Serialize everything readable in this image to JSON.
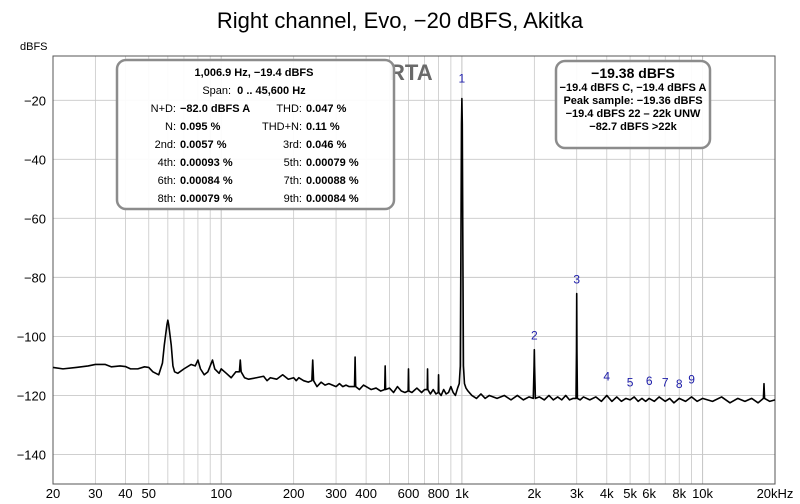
{
  "chart_data": {
    "type": "line",
    "title": "Right channel, Evo, −20 dBFS, Akitka",
    "ylabel": "dBFS",
    "x_scale": "log",
    "xlim": [
      20,
      20000
    ],
    "ylim": [
      -150,
      -5
    ],
    "grid": true,
    "x_ticks": [
      {
        "v": 20,
        "label": "20"
      },
      {
        "v": 30,
        "label": "30"
      },
      {
        "v": 40,
        "label": "40"
      },
      {
        "v": 50,
        "label": "50"
      },
      {
        "v": 100,
        "label": "100"
      },
      {
        "v": 200,
        "label": "200"
      },
      {
        "v": 300,
        "label": "300"
      },
      {
        "v": 400,
        "label": "400"
      },
      {
        "v": 600,
        "label": "600"
      },
      {
        "v": 800,
        "label": "800"
      },
      {
        "v": 1000,
        "label": "1k"
      },
      {
        "v": 2000,
        "label": "2k"
      },
      {
        "v": 3000,
        "label": "3k"
      },
      {
        "v": 4000,
        "label": "4k"
      },
      {
        "v": 5000,
        "label": "5k"
      },
      {
        "v": 6000,
        "label": "6k"
      },
      {
        "v": 8000,
        "label": "8k"
      },
      {
        "v": 10000,
        "label": "10k"
      },
      {
        "v": 20000,
        "label": "20kHz"
      }
    ],
    "y_ticks": [
      {
        "v": -20,
        "label": "−20"
      },
      {
        "v": -40,
        "label": "−40"
      },
      {
        "v": -60,
        "label": "−60"
      },
      {
        "v": -80,
        "label": "−80"
      },
      {
        "v": -100,
        "label": "−100"
      },
      {
        "v": -120,
        "label": "−120"
      },
      {
        "v": -140,
        "label": "−140"
      }
    ],
    "series": [
      {
        "points": [
          [
            20,
            -110.5
          ],
          [
            22,
            -111
          ],
          [
            25,
            -110.5
          ],
          [
            28,
            -110
          ],
          [
            30,
            -109.5
          ],
          [
            33,
            -109.5
          ],
          [
            35,
            -110.3
          ],
          [
            38,
            -110
          ],
          [
            40,
            -110.2
          ],
          [
            42,
            -111
          ],
          [
            45,
            -111
          ],
          [
            48,
            -110.3
          ],
          [
            50,
            -110.5
          ],
          [
            52,
            -112
          ],
          [
            55,
            -113
          ],
          [
            57,
            -109
          ],
          [
            58,
            -103
          ],
          [
            59.5,
            -96
          ],
          [
            60,
            -94.5
          ],
          [
            60.5,
            -96
          ],
          [
            62,
            -103
          ],
          [
            63,
            -110
          ],
          [
            64,
            -112
          ],
          [
            66,
            -112.5
          ],
          [
            70,
            -111
          ],
          [
            75,
            -109.5
          ],
          [
            78,
            -110
          ],
          [
            80,
            -108
          ],
          [
            82,
            -111
          ],
          [
            85,
            -113
          ],
          [
            88,
            -112
          ],
          [
            90,
            -110
          ],
          [
            92,
            -108
          ],
          [
            94,
            -111
          ],
          [
            98,
            -112.5
          ],
          [
            100,
            -111
          ],
          [
            105,
            -112.5
          ],
          [
            110,
            -114
          ],
          [
            115,
            -112
          ],
          [
            119,
            -112
          ],
          [
            120,
            -108
          ],
          [
            121,
            -112
          ],
          [
            125,
            -114
          ],
          [
            130,
            -114.5
          ],
          [
            140,
            -114
          ],
          [
            150,
            -113.5
          ],
          [
            155,
            -115
          ],
          [
            160,
            -114
          ],
          [
            170,
            -114.5
          ],
          [
            180,
            -113
          ],
          [
            190,
            -114.5
          ],
          [
            200,
            -114
          ],
          [
            205,
            -115
          ],
          [
            210,
            -114
          ],
          [
            220,
            -115
          ],
          [
            230,
            -115.5
          ],
          [
            238,
            -115
          ],
          [
            240,
            -108
          ],
          [
            242,
            -115
          ],
          [
            250,
            -117
          ],
          [
            260,
            -115.5
          ],
          [
            270,
            -116.5
          ],
          [
            280,
            -116
          ],
          [
            290,
            -116.5
          ],
          [
            300,
            -117
          ],
          [
            310,
            -116
          ],
          [
            320,
            -117
          ],
          [
            330,
            -116.5
          ],
          [
            340,
            -117
          ],
          [
            358,
            -117
          ],
          [
            360,
            -107
          ],
          [
            362,
            -117
          ],
          [
            375,
            -118
          ],
          [
            390,
            -116.5
          ],
          [
            400,
            -117
          ],
          [
            420,
            -118
          ],
          [
            440,
            -117.5
          ],
          [
            460,
            -118.5
          ],
          [
            478,
            -118
          ],
          [
            480,
            -110
          ],
          [
            482,
            -118
          ],
          [
            500,
            -117.5
          ],
          [
            520,
            -119
          ],
          [
            540,
            -117
          ],
          [
            560,
            -118.5
          ],
          [
            580,
            -119
          ],
          [
            598,
            -118.5
          ],
          [
            600,
            -111
          ],
          [
            602,
            -118.5
          ],
          [
            620,
            -119
          ],
          [
            650,
            -117.5
          ],
          [
            680,
            -119
          ],
          [
            700,
            -118
          ],
          [
            718,
            -118
          ],
          [
            720,
            -111
          ],
          [
            722,
            -118
          ],
          [
            740,
            -119.5
          ],
          [
            760,
            -118
          ],
          [
            780,
            -119.5
          ],
          [
            798,
            -119
          ],
          [
            800,
            -113
          ],
          [
            802,
            -119
          ],
          [
            820,
            -120
          ],
          [
            840,
            -118
          ],
          [
            860,
            -119.5
          ],
          [
            880,
            -119
          ],
          [
            900,
            -117
          ],
          [
            920,
            -119
          ],
          [
            940,
            -120
          ],
          [
            960,
            -117.5
          ],
          [
            975,
            -116
          ],
          [
            985,
            -110
          ],
          [
            992,
            -60
          ],
          [
            996,
            -28
          ],
          [
            1000,
            -19.4
          ],
          [
            1004,
            -28
          ],
          [
            1008,
            -60
          ],
          [
            1015,
            -110
          ],
          [
            1025,
            -116
          ],
          [
            1040,
            -117.5
          ],
          [
            1060,
            -118.5
          ],
          [
            1100,
            -120
          ],
          [
            1150,
            -121
          ],
          [
            1200,
            -119.5
          ],
          [
            1250,
            -121
          ],
          [
            1300,
            -120
          ],
          [
            1400,
            -121
          ],
          [
            1500,
            -120
          ],
          [
            1600,
            -121.5
          ],
          [
            1700,
            -120
          ],
          [
            1800,
            -121.5
          ],
          [
            1900,
            -120.5
          ],
          [
            1980,
            -121
          ],
          [
            1995,
            -110
          ],
          [
            2000,
            -104.5
          ],
          [
            2005,
            -110
          ],
          [
            2020,
            -121
          ],
          [
            2100,
            -120.5
          ],
          [
            2200,
            -121.5
          ],
          [
            2300,
            -120
          ],
          [
            2400,
            -121.5
          ],
          [
            2500,
            -120.5
          ],
          [
            2600,
            -121.5
          ],
          [
            2700,
            -120
          ],
          [
            2800,
            -121.5
          ],
          [
            2900,
            -121
          ],
          [
            2980,
            -121
          ],
          [
            2993,
            -105
          ],
          [
            3000,
            -85.5
          ],
          [
            3007,
            -105
          ],
          [
            3020,
            -121
          ],
          [
            3100,
            -121.5
          ],
          [
            3200,
            -120.5
          ],
          [
            3400,
            -121.5
          ],
          [
            3600,
            -120.5
          ],
          [
            3800,
            -122
          ],
          [
            4000,
            -120
          ],
          [
            4200,
            -122
          ],
          [
            4400,
            -120.5
          ],
          [
            4600,
            -122
          ],
          [
            4800,
            -121
          ],
          [
            5000,
            -121.5
          ],
          [
            5200,
            -120.5
          ],
          [
            5400,
            -122
          ],
          [
            5600,
            -121
          ],
          [
            5800,
            -122
          ],
          [
            6000,
            -121
          ],
          [
            6300,
            -122
          ],
          [
            6600,
            -120.5
          ],
          [
            7000,
            -122
          ],
          [
            7300,
            -121
          ],
          [
            7600,
            -122.5
          ],
          [
            8000,
            -121
          ],
          [
            8500,
            -122
          ],
          [
            9000,
            -120.5
          ],
          [
            9500,
            -122
          ],
          [
            10000,
            -121
          ],
          [
            11000,
            -122
          ],
          [
            12000,
            -120.5
          ],
          [
            13000,
            -122.5
          ],
          [
            14000,
            -121
          ],
          [
            15000,
            -122
          ],
          [
            16000,
            -121
          ],
          [
            17000,
            -122.5
          ],
          [
            17900,
            -121
          ],
          [
            18000,
            -116
          ],
          [
            18100,
            -121
          ],
          [
            19000,
            -122
          ],
          [
            20000,
            -121.5
          ]
        ]
      }
    ],
    "harmonic_markers": [
      {
        "label": "1",
        "x": 1000,
        "y": -14
      },
      {
        "label": "2",
        "x": 2000,
        "y": -101
      },
      {
        "label": "3",
        "x": 3000,
        "y": -82
      },
      {
        "label": "4",
        "x": 4000,
        "y": -115
      },
      {
        "label": "5",
        "x": 5000,
        "y": -117
      },
      {
        "label": "6",
        "x": 6000,
        "y": -116.5
      },
      {
        "label": "7",
        "x": 7000,
        "y": -117
      },
      {
        "label": "8",
        "x": 8000,
        "y": -117.5
      },
      {
        "label": "9",
        "x": 9000,
        "y": -116
      }
    ],
    "annotation": "RTA"
  },
  "stats_box": {
    "header": "1,006.9 Hz, −19.4 dBFS",
    "span_label": "Span:",
    "span_value": "0 .. 45,600 Hz",
    "rows": [
      {
        "l_label": "N+D:",
        "l_value": "−82.0 dBFS A",
        "r_label": "THD:",
        "r_value": "0.047 %"
      },
      {
        "l_label": "N:",
        "l_value": "0.095 %",
        "r_label": "THD+N:",
        "r_value": "0.11 %"
      },
      {
        "l_label": "2nd:",
        "l_value": "0.0057 %",
        "r_label": "3rd:",
        "r_value": "0.046 %"
      },
      {
        "l_label": "4th:",
        "l_value": "0.00093 %",
        "r_label": "5th:",
        "r_value": "0.00079 %"
      },
      {
        "l_label": "6th:",
        "l_value": "0.00084 %",
        "r_label": "7th:",
        "r_value": "0.00088 %"
      },
      {
        "l_label": "8th:",
        "l_value": "0.00079 %",
        "r_label": "9th:",
        "r_value": "0.00084 %"
      }
    ]
  },
  "level_box": {
    "main": "−19.38 dBFS",
    "lines": [
      "−19.4 dBFS C, −19.4 dBFS A",
      "Peak sample: −19.36 dBFS",
      "−19.4 dBFS 22 – 22k UNW",
      "−82.7 dBFS >22k"
    ]
  },
  "colors": {
    "trace": "#000000",
    "harmonic_label": "#1a1aa8",
    "grid": "#c8c8c8",
    "box_border": "#8c8c8c",
    "rta": "#6a6a6a"
  }
}
